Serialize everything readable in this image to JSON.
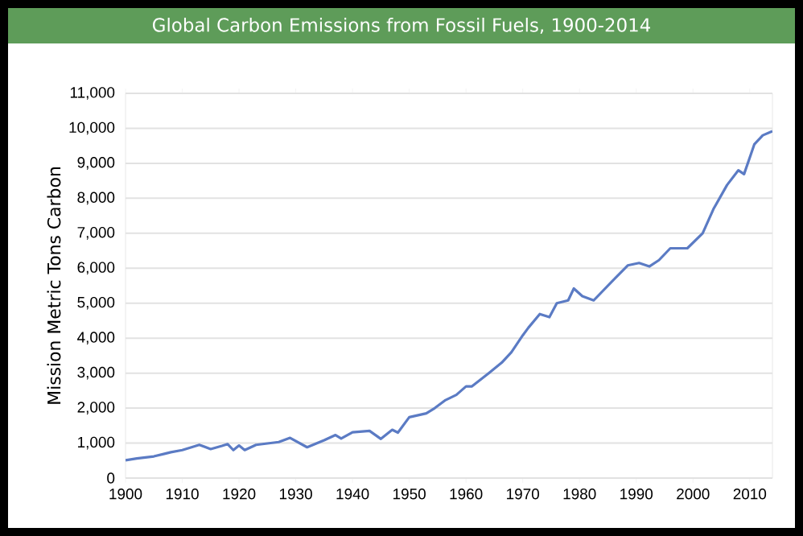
{
  "chart_data": {
    "type": "line",
    "title": "Global Carbon Emissions from Fossil Fuels, 1900-2014",
    "ylabel": "Mission Metric Tons Carbon",
    "x": [
      1900,
      1902,
      1905,
      1907,
      1908,
      1910,
      1913,
      1915,
      1917,
      1918,
      1919,
      1920,
      1921,
      1923,
      1927,
      1929,
      1932,
      1935,
      1937,
      1938,
      1940,
      1943,
      1945,
      1947,
      1948,
      1950,
      1953,
      1954.5,
      1956.4,
      1958.3,
      1960,
      1961,
      1964,
      1966.3,
      1968,
      1970,
      1971,
      1973,
      1974.7,
      1976,
      1978,
      1979,
      1980.5,
      1982.5,
      1985.7,
      1988.5,
      1990.5,
      1992.3,
      1994,
      1996,
      1999,
      2001.7,
      2003.6,
      2006,
      2008,
      2009,
      2010.8,
      2012.3,
      2014
    ],
    "series": [
      {
        "color": "#5b7bc4",
        "values": [
          510,
          560,
          620,
          700,
          740,
          800,
          950,
          830,
          920,
          970,
          800,
          930,
          800,
          950,
          1030,
          1150,
          880,
          1080,
          1230,
          1130,
          1310,
          1350,
          1120,
          1380,
          1300,
          1740,
          1850,
          2000,
          2230,
          2380,
          2620,
          2620,
          3000,
          3300,
          3600,
          4080,
          4300,
          4690,
          4600,
          5000,
          5080,
          5420,
          5200,
          5080,
          5620,
          6080,
          6150,
          6050,
          6230,
          6570,
          6570,
          7000,
          7690,
          8380,
          8800,
          8690,
          9540,
          9800,
          9920
        ]
      }
    ],
    "xlim": [
      1900,
      2014
    ],
    "xticks": [
      1900,
      1910,
      1920,
      1930,
      1940,
      1950,
      1960,
      1970,
      1980,
      1990,
      2000,
      2010
    ],
    "ylim": [
      0,
      11000
    ],
    "yticks": [
      0,
      {
        "value": 1000,
        "label": "1,000"
      },
      {
        "value": 2000,
        "label": "2,000"
      },
      {
        "value": 3000,
        "label": "3,000"
      },
      {
        "value": 4000,
        "label": "4,000"
      },
      {
        "value": 5000,
        "label": "5,000"
      },
      {
        "value": 6000,
        "label": "6,000"
      },
      {
        "value": 7000,
        "label": "7,000"
      },
      {
        "value": 8000,
        "label": "8,000"
      },
      {
        "value": 9000,
        "label": "9,000"
      },
      {
        "value": 10000,
        "label": "10,000"
      },
      {
        "value": 11000,
        "label": "11,000"
      }
    ],
    "grid": "y",
    "line_style": "solid"
  }
}
